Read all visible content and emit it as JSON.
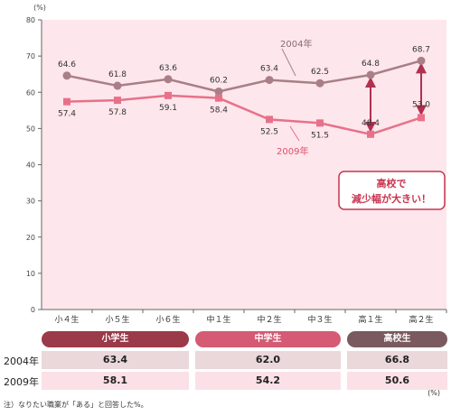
{
  "chart_data": {
    "type": "line",
    "unit": "(%)",
    "categories": [
      "小４生",
      "小５生",
      "小６生",
      "中１生",
      "中２生",
      "中３生",
      "高１生",
      "高２生"
    ],
    "ylim": [
      0,
      80
    ],
    "yticks": [
      0,
      10,
      20,
      30,
      40,
      50,
      60,
      70,
      80
    ],
    "grid": false,
    "series": [
      {
        "name": "2004年",
        "color": "#a87f86",
        "values": [
          64.6,
          61.8,
          63.6,
          60.2,
          63.4,
          62.5,
          64.8,
          68.7
        ]
      },
      {
        "name": "2009年",
        "color": "#e8718a",
        "values": [
          57.4,
          57.8,
          59.1,
          58.4,
          52.5,
          51.5,
          48.4,
          53.0
        ]
      }
    ],
    "annotation": {
      "line1": "高校で",
      "line2": "減少幅が大きい！"
    }
  },
  "bands": [
    {
      "label": "小学生",
      "color": "#9b3a48"
    },
    {
      "label": "中学生",
      "color": "#d55a73"
    },
    {
      "label": "高校生",
      "color": "#7a5a5e"
    }
  ],
  "table": {
    "rows": [
      {
        "label": "2004年",
        "values": [
          "63.4",
          "62.0",
          "66.8"
        ]
      },
      {
        "label": "2009年",
        "values": [
          "58.1",
          "54.2",
          "50.6"
        ]
      }
    ],
    "unit": "(%)"
  },
  "note": "注）なりたい職業が「ある」と回答した%。"
}
